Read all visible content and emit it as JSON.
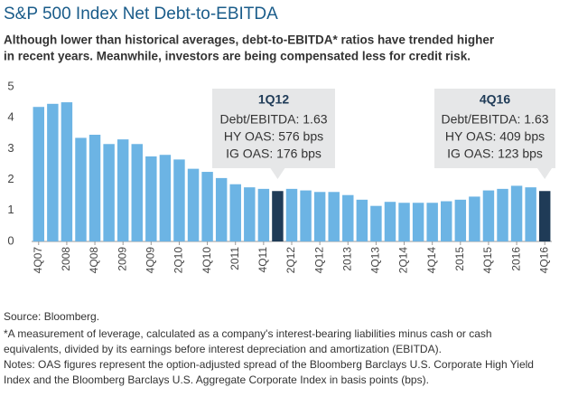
{
  "chart_data": {
    "type": "bar",
    "title": "S&P 500 Index Net Debt-to-EBITDA",
    "subtitle": [
      "Although lower than historical averages, debt-to-EBITDA* ratios have trended higher",
      "in recent years. Meanwhile, investors are being compensated less for credit risk."
    ],
    "categories": [
      "4Q07",
      null,
      "2008",
      null,
      "4Q08",
      null,
      "2009",
      null,
      "4Q09",
      null,
      "2Q10",
      null,
      "4Q10",
      null,
      "2011",
      null,
      "4Q11",
      null,
      "2Q12",
      null,
      "4Q12",
      null,
      "2013",
      null,
      "4Q13",
      null,
      "2Q14",
      null,
      "4Q14",
      null,
      "2015",
      null,
      "4Q15",
      null,
      "2016",
      null,
      "4Q16"
    ],
    "values": [
      4.35,
      4.45,
      4.5,
      3.35,
      3.45,
      3.15,
      3.3,
      3.15,
      2.75,
      2.8,
      2.65,
      2.35,
      2.25,
      2.05,
      1.85,
      1.75,
      1.7,
      1.63,
      1.7,
      1.65,
      1.6,
      1.6,
      1.5,
      1.35,
      1.15,
      1.28,
      1.25,
      1.25,
      1.25,
      1.3,
      1.35,
      1.45,
      1.65,
      1.7,
      1.8,
      1.75,
      1.63
    ],
    "colors": [
      "#6cb4e4",
      "#6cb4e4",
      "#6cb4e4",
      "#6cb4e4",
      "#6cb4e4",
      "#6cb4e4",
      "#6cb4e4",
      "#6cb4e4",
      "#6cb4e4",
      "#6cb4e4",
      "#6cb4e4",
      "#6cb4e4",
      "#6cb4e4",
      "#6cb4e4",
      "#6cb4e4",
      "#6cb4e4",
      "#6cb4e4",
      "#1f3b57",
      "#6cb4e4",
      "#6cb4e4",
      "#6cb4e4",
      "#6cb4e4",
      "#6cb4e4",
      "#6cb4e4",
      "#6cb4e4",
      "#6cb4e4",
      "#6cb4e4",
      "#6cb4e4",
      "#6cb4e4",
      "#6cb4e4",
      "#6cb4e4",
      "#6cb4e4",
      "#6cb4e4",
      "#6cb4e4",
      "#6cb4e4",
      "#6cb4e4",
      "#1f3b57"
    ],
    "ylim": [
      0,
      5
    ],
    "yticks": [
      0,
      1,
      2,
      3,
      4,
      5
    ],
    "annotations": [
      {
        "title": "1Q12",
        "lines": [
          "Debt/EBITDA: 1.63",
          "HY OAS: 576 bps",
          "IG OAS: 176 bps"
        ]
      },
      {
        "title": "4Q16",
        "lines": [
          "Debt/EBITDA: 1.63",
          "HY OAS: 409 bps",
          "IG OAS: 123 bps"
        ]
      }
    ],
    "footnotes": [
      "Source: Bloomberg.",
      "*A measurement of leverage, calculated as a company's interest-bearing liabilities minus cash or cash",
      "equivalents, divided by its earnings before interest depreciation and amortization (EBITDA).",
      "Notes: OAS figures represent the option-adjusted spread of the Bloomberg Barclays U.S. Corporate High Yield",
      "Index and the Bloomberg Barclays U.S. Aggregate Corporate Index in basis points (bps)."
    ]
  }
}
